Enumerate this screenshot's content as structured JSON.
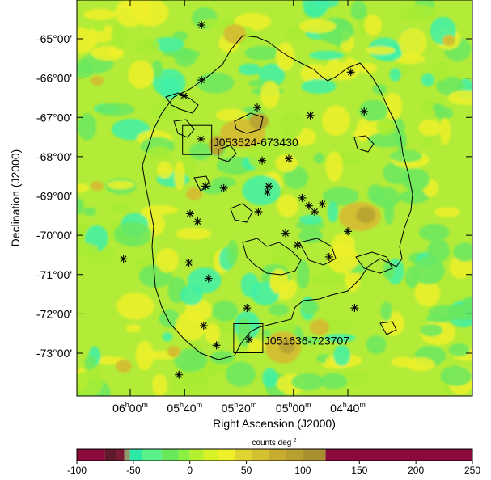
{
  "chart_data": {
    "type": "heatmap",
    "title": "",
    "xlabel": "Right Ascension (J2000)",
    "ylabel": "Declination (J2000)",
    "x_ticks": [
      {
        "label": "06",
        "unit": "h",
        "min": "00",
        "munit": "m",
        "ra_min": 360
      },
      {
        "label": "05",
        "unit": "h",
        "min": "40",
        "munit": "m",
        "ra_min": 340
      },
      {
        "label": "05",
        "unit": "h",
        "min": "20",
        "munit": "m",
        "ra_min": 320
      },
      {
        "label": "05",
        "unit": "h",
        "min": "00",
        "munit": "m",
        "ra_min": 300
      },
      {
        "label": "04",
        "unit": "h",
        "min": "40",
        "munit": "m",
        "ra_min": 280
      }
    ],
    "y_ticks": [
      {
        "label": "-65°00'",
        "dec": -65
      },
      {
        "label": "-66°00'",
        "dec": -66
      },
      {
        "label": "-67°00'",
        "dec": -67
      },
      {
        "label": "-68°00'",
        "dec": -68
      },
      {
        "label": "-69°00'",
        "dec": -69
      },
      {
        "label": "-70°00'",
        "dec": -70
      },
      {
        "label": "-71°00'",
        "dec": -71
      },
      {
        "label": "-72°00'",
        "dec": -72
      },
      {
        "label": "-73°00'",
        "dec": -73
      }
    ],
    "colorbar": {
      "label": "counts deg",
      "label_sup": "-2",
      "range": [
        -100,
        250
      ],
      "ticks": [
        "-100",
        "-50",
        "0",
        "50",
        "100",
        "150",
        "200",
        "250"
      ],
      "tick_values": [
        -100,
        -50,
        0,
        50,
        100,
        150,
        200,
        250
      ],
      "bins": [
        {
          "from": -100,
          "to": -75,
          "color": "#8b0a3c"
        },
        {
          "from": -75,
          "to": -65,
          "color": "#5e1a2a"
        },
        {
          "from": -65,
          "to": -58,
          "color": "#7a1a34"
        },
        {
          "from": -58,
          "to": -53,
          "color": "#8e9a6a"
        },
        {
          "from": -53,
          "to": -42,
          "color": "#2ee8a8"
        },
        {
          "from": -42,
          "to": -25,
          "color": "#5af08a"
        },
        {
          "from": -25,
          "to": -10,
          "color": "#6ae85c"
        },
        {
          "from": -10,
          "to": 0,
          "color": "#8cf040"
        },
        {
          "from": 0,
          "to": 12,
          "color": "#b4f030"
        },
        {
          "from": 12,
          "to": 25,
          "color": "#d8f228"
        },
        {
          "from": 25,
          "to": 40,
          "color": "#f0f028"
        },
        {
          "from": 40,
          "to": 55,
          "color": "#e0d430"
        },
        {
          "from": 55,
          "to": 70,
          "color": "#d4c030"
        },
        {
          "from": 70,
          "to": 85,
          "color": "#c8ac30"
        },
        {
          "from": 85,
          "to": 100,
          "color": "#b8a030"
        },
        {
          "from": 100,
          "to": 120,
          "color": "#a89030"
        },
        {
          "from": 120,
          "to": 250,
          "color": "#8b0a3c"
        }
      ]
    },
    "map_colors": {
      "background": "#b2ec38",
      "cyan": "#3ef0a8",
      "green": "#6ae860",
      "lime": "#a8ec34",
      "yellow": "#eef02a",
      "olive": "#d2c030",
      "brown": "#bba532"
    },
    "annotations": [
      {
        "name": "J053524-673430",
        "text": "J053524-673430",
        "ra_min": 335.4,
        "dec": -67.575
      },
      {
        "name": "J051636-723707",
        "text": "J051636-723707",
        "ra_min": 316.6,
        "dec": -72.619
      }
    ],
    "sources": [
      {
        "ra_min": 333.8,
        "dec": -64.65
      },
      {
        "ra_min": 333.8,
        "dec": -66.05
      },
      {
        "ra_min": 340.3,
        "dec": -66.45
      },
      {
        "ra_min": 313.3,
        "dec": -66.75
      },
      {
        "ra_min": 293.8,
        "dec": -66.95
      },
      {
        "ra_min": 274.0,
        "dec": -66.85
      },
      {
        "ra_min": 278.9,
        "dec": -65.85
      },
      {
        "ra_min": 334.0,
        "dec": -67.55
      },
      {
        "ra_min": 311.5,
        "dec": -68.1
      },
      {
        "ra_min": 301.7,
        "dec": -68.05
      },
      {
        "ra_min": 332.3,
        "dec": -68.75
      },
      {
        "ra_min": 325.6,
        "dec": -68.8
      },
      {
        "ra_min": 309.1,
        "dec": -68.75
      },
      {
        "ra_min": 309.6,
        "dec": -68.9
      },
      {
        "ra_min": 296.8,
        "dec": -69.05
      },
      {
        "ra_min": 294.3,
        "dec": -69.25
      },
      {
        "ra_min": 292.2,
        "dec": -69.4
      },
      {
        "ra_min": 289.4,
        "dec": -69.2
      },
      {
        "ra_min": 338.0,
        "dec": -69.45
      },
      {
        "ra_min": 335.2,
        "dec": -69.65
      },
      {
        "ra_min": 312.9,
        "dec": -69.4
      },
      {
        "ra_min": 302.9,
        "dec": -69.95
      },
      {
        "ra_min": 298.5,
        "dec": -70.25
      },
      {
        "ra_min": 280.0,
        "dec": -69.9
      },
      {
        "ra_min": 286.9,
        "dec": -70.55
      },
      {
        "ra_min": 362.5,
        "dec": -70.6
      },
      {
        "ra_min": 338.4,
        "dec": -70.7
      },
      {
        "ra_min": 331.2,
        "dec": -71.1
      },
      {
        "ra_min": 317.1,
        "dec": -71.85
      },
      {
        "ra_min": 277.5,
        "dec": -71.85
      },
      {
        "ra_min": 333.0,
        "dec": -72.3
      },
      {
        "ra_min": 316.3,
        "dec": -72.65
      },
      {
        "ra_min": 328.3,
        "dec": -72.8
      },
      {
        "ra_min": 342.1,
        "dec": -73.55
      }
    ]
  }
}
